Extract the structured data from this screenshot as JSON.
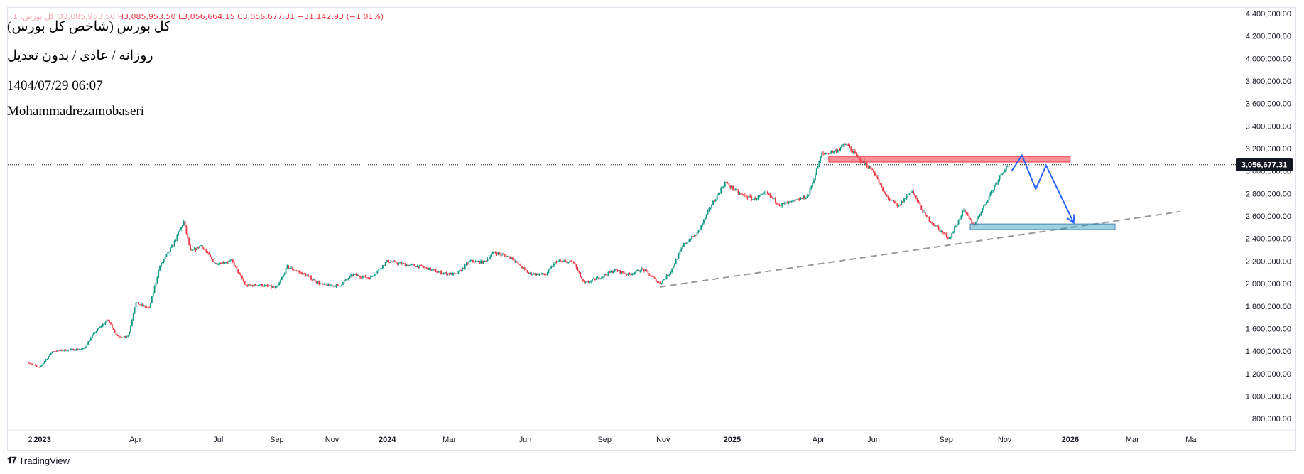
{
  "header": {
    "symbol_faded": "کل بورس, 1",
    "open_label": "O",
    "open_value": "3,085,953.50",
    "high_label": "H",
    "high_value": "3,085,953.50",
    "low_label": "L",
    "low_value": "3,056,664.15",
    "close_label": "C",
    "close_value": "3,056,677.31",
    "change": "−31,142.93 (−1.01%)"
  },
  "notes": {
    "title": "کل بورس (شاخص کل بورس)",
    "mode": "روزانه / عادی / بدون تعدیل",
    "datetime": "1404/07/29 06:07",
    "author": "Mohammadrezamobaseri"
  },
  "footer": {
    "brand": "TradingView"
  },
  "colors": {
    "up": "#089981",
    "down": "#f23645",
    "arrow": "#2962ff",
    "trend": "#999999"
  },
  "chart_data": {
    "type": "candlestick",
    "title": "کل بورس (شاخص کل بورس)",
    "x_tick_labels": [
      "2",
      "2023",
      "Apr",
      "Jul",
      "Sep",
      "Nov",
      "2024",
      "Mar",
      "Jun",
      "Sep",
      "Nov",
      "2025",
      "Apr",
      "Jun",
      "Sep",
      "Nov",
      "2026",
      "Mar",
      "Ma"
    ],
    "x_tick_dates": [
      2022.965,
      2023.0,
      2023.27,
      2023.51,
      2023.68,
      2023.84,
      2024.0,
      2024.18,
      2024.4,
      2024.63,
      2024.8,
      2025.0,
      2025.25,
      2025.41,
      2025.62,
      2025.79,
      2025.98,
      2026.16,
      2026.33
    ],
    "y_range": [
      700000,
      4450000
    ],
    "y_ticks": [
      "800,000.00",
      "1,000,000.00",
      "1,200,000.00",
      "1,400,000.00",
      "1,600,000.00",
      "1,800,000.00",
      "2,000,000.00",
      "2,200,000.00",
      "2,400,000.00",
      "2,600,000.00",
      "2,800,000.00",
      "3,000,000.00",
      "3,200,000.00",
      "3,400,000.00",
      "3,600,000.00",
      "3,800,000.00",
      "4,000,000.00",
      "4,200,000.00",
      "4,400,000.00"
    ],
    "y_tick_values": [
      800000,
      1000000,
      1200000,
      1400000,
      1600000,
      1800000,
      2000000,
      2200000,
      2400000,
      2600000,
      2800000,
      3000000,
      3200000,
      3400000,
      3600000,
      3800000,
      4000000,
      4200000,
      4400000
    ],
    "last_price": 3056677.31,
    "last_price_label": "3,056,677.31",
    "price_path": [
      [
        2022.96,
        1300000
      ],
      [
        2022.99,
        1250000
      ],
      [
        2023.03,
        1400000
      ],
      [
        2023.07,
        1410000
      ],
      [
        2023.12,
        1420000
      ],
      [
        2023.15,
        1560000
      ],
      [
        2023.19,
        1680000
      ],
      [
        2023.22,
        1520000
      ],
      [
        2023.25,
        1540000
      ],
      [
        2023.27,
        1830000
      ],
      [
        2023.31,
        1780000
      ],
      [
        2023.34,
        2150000
      ],
      [
        2023.38,
        2350000
      ],
      [
        2023.41,
        2550000
      ],
      [
        2023.43,
        2280000
      ],
      [
        2023.46,
        2340000
      ],
      [
        2023.5,
        2180000
      ],
      [
        2023.55,
        2200000
      ],
      [
        2023.59,
        1980000
      ],
      [
        2023.63,
        1990000
      ],
      [
        2023.68,
        1960000
      ],
      [
        2023.71,
        2150000
      ],
      [
        2023.76,
        2080000
      ],
      [
        2023.81,
        1990000
      ],
      [
        2023.86,
        1980000
      ],
      [
        2023.9,
        2080000
      ],
      [
        2023.95,
        2050000
      ],
      [
        2024.0,
        2200000
      ],
      [
        2024.05,
        2170000
      ],
      [
        2024.1,
        2150000
      ],
      [
        2024.15,
        2100000
      ],
      [
        2024.2,
        2080000
      ],
      [
        2024.24,
        2200000
      ],
      [
        2024.28,
        2190000
      ],
      [
        2024.31,
        2280000
      ],
      [
        2024.36,
        2230000
      ],
      [
        2024.41,
        2090000
      ],
      [
        2024.46,
        2080000
      ],
      [
        2024.49,
        2200000
      ],
      [
        2024.54,
        2190000
      ],
      [
        2024.57,
        2000000
      ],
      [
        2024.62,
        2060000
      ],
      [
        2024.66,
        2120000
      ],
      [
        2024.7,
        2080000
      ],
      [
        2024.74,
        2130000
      ],
      [
        2024.79,
        2000000
      ],
      [
        2024.82,
        2100000
      ],
      [
        2024.86,
        2350000
      ],
      [
        2024.9,
        2450000
      ],
      [
        2024.94,
        2700000
      ],
      [
        2024.98,
        2900000
      ],
      [
        2025.02,
        2800000
      ],
      [
        2025.06,
        2750000
      ],
      [
        2025.1,
        2800000
      ],
      [
        2025.14,
        2700000
      ],
      [
        2025.18,
        2730000
      ],
      [
        2025.22,
        2780000
      ],
      [
        2025.26,
        3150000
      ],
      [
        2025.3,
        3180000
      ],
      [
        2025.33,
        3240000
      ],
      [
        2025.37,
        3100000
      ],
      [
        2025.41,
        3000000
      ],
      [
        2025.44,
        2800000
      ],
      [
        2025.48,
        2680000
      ],
      [
        2025.52,
        2830000
      ],
      [
        2025.56,
        2600000
      ],
      [
        2025.6,
        2480000
      ],
      [
        2025.63,
        2400000
      ],
      [
        2025.67,
        2650000
      ],
      [
        2025.7,
        2520000
      ],
      [
        2025.74,
        2750000
      ],
      [
        2025.78,
        2980000
      ],
      [
        2025.8,
        3056677
      ]
    ],
    "annotations": {
      "resistance_zone": {
        "x_start": 2025.28,
        "x_end": 2025.98,
        "y_low": 3080000,
        "y_high": 3130000,
        "color": "#f23645"
      },
      "support_zone": {
        "x_start": 2025.69,
        "x_end": 2026.11,
        "y_low": 2480000,
        "y_high": 2530000,
        "color": "#1e9cbf"
      },
      "trendline": {
        "x1": 2024.79,
        "y1": 1970000,
        "x2": 2026.3,
        "y2": 2640000,
        "style": "dashed"
      },
      "projection_path": [
        [
          2025.81,
          3000000
        ],
        [
          2025.84,
          3140000
        ],
        [
          2025.88,
          2840000
        ],
        [
          2025.91,
          3050000
        ],
        [
          2025.99,
          2540000
        ]
      ]
    }
  }
}
